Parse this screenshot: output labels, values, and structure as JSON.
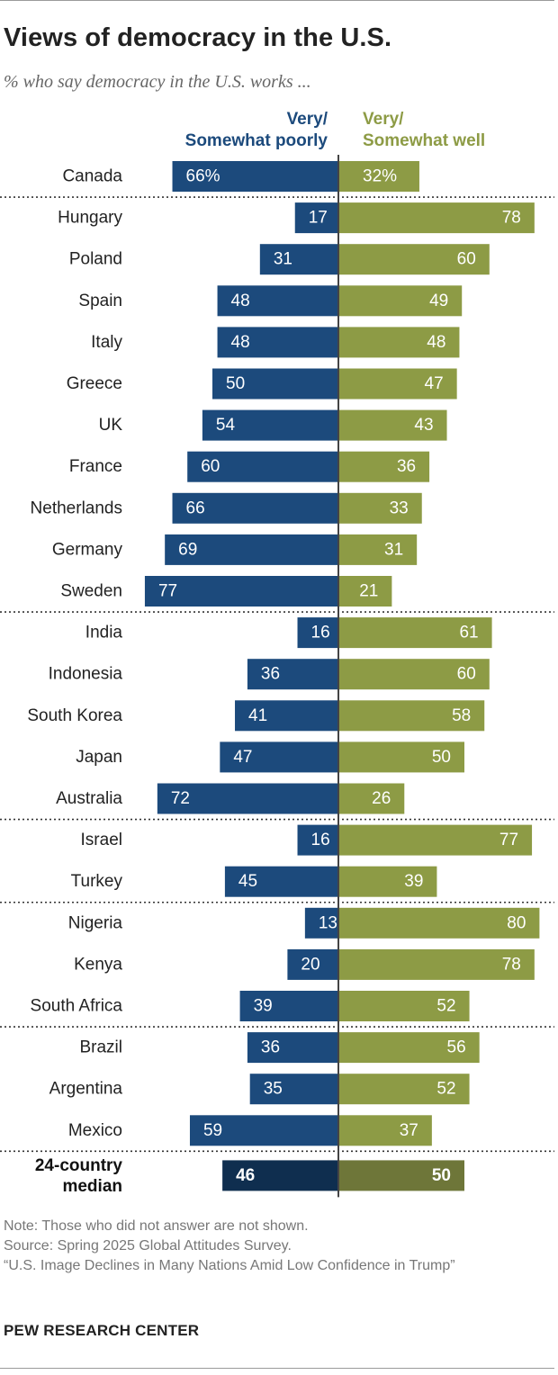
{
  "title": "Views of democracy in the U.S.",
  "subtitle": "% who say democracy in the U.S. works ...",
  "headers": {
    "poorly": [
      "Very/",
      "Somewhat poorly"
    ],
    "well": [
      "Very/",
      "Somewhat well"
    ]
  },
  "colors": {
    "poorly": "#1c4a7c",
    "well": "#8d9b45",
    "median_poorly": "#0f2e4f",
    "median_well": "#6e7639"
  },
  "chart_data": {
    "type": "bar",
    "orientation": "horizontal-diverging",
    "categories": [
      "Canada",
      "Hungary",
      "Poland",
      "Spain",
      "Italy",
      "Greece",
      "UK",
      "France",
      "Netherlands",
      "Germany",
      "Sweden",
      "India",
      "Indonesia",
      "South Korea",
      "Japan",
      "Australia",
      "Israel",
      "Turkey",
      "Nigeria",
      "Kenya",
      "South Africa",
      "Brazil",
      "Argentina",
      "Mexico"
    ],
    "series": [
      {
        "name": "Very/Somewhat poorly",
        "values": [
          66,
          17,
          31,
          48,
          48,
          50,
          54,
          60,
          66,
          69,
          77,
          16,
          36,
          41,
          47,
          72,
          16,
          45,
          13,
          20,
          39,
          36,
          35,
          59
        ]
      },
      {
        "name": "Very/Somewhat well",
        "values": [
          32,
          78,
          60,
          49,
          48,
          47,
          43,
          36,
          33,
          31,
          21,
          61,
          60,
          58,
          50,
          26,
          77,
          39,
          80,
          78,
          52,
          56,
          52,
          37
        ]
      }
    ],
    "first_row_suffix": "%",
    "group_breaks_after": [
      "Canada",
      "Sweden",
      "Australia",
      "Turkey",
      "South Africa",
      "Mexico"
    ],
    "median": {
      "label_lines": [
        "24-country",
        "median"
      ],
      "poorly": 46,
      "well": 50
    }
  },
  "notes": [
    "Note: Those who did not answer are not shown.",
    "Source: Spring 2025 Global Attitudes Survey.",
    "“U.S. Image Declines in Many Nations Amid Low Confidence in Trump”"
  ],
  "brand": "PEW RESEARCH CENTER"
}
